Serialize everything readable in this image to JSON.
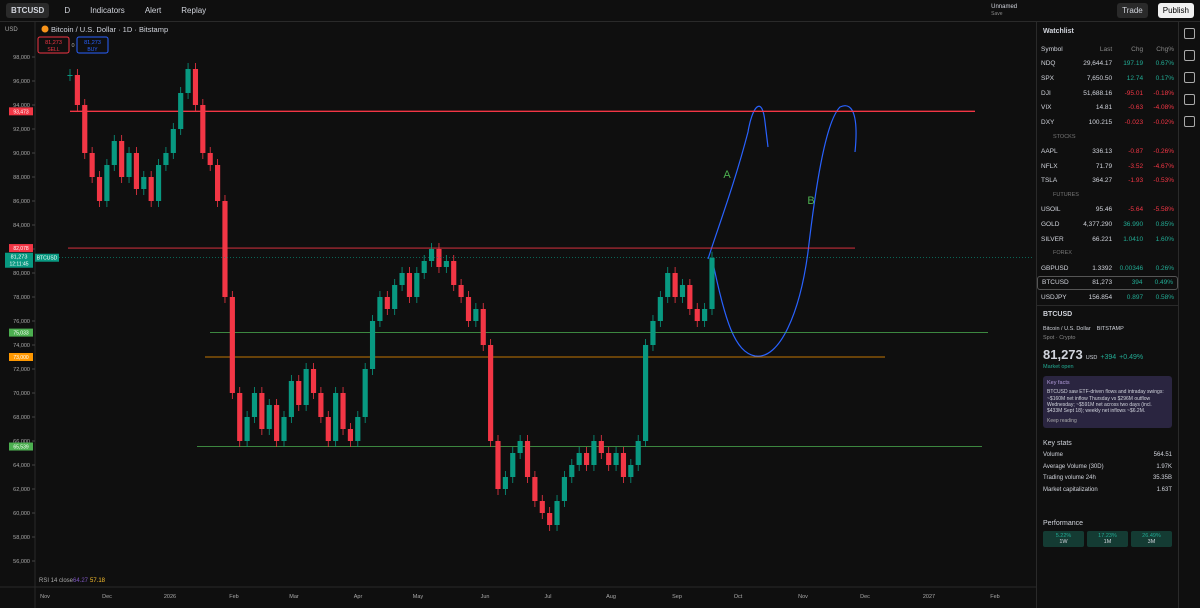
{
  "toolbar": {
    "symbol": "BTCUSD",
    "interval": "D",
    "indicators": "Indicators",
    "alert": "Alert",
    "replay": "Replay",
    "layout_name": "Unnamed",
    "save": "Save",
    "trade": "Trade",
    "publish": "Publish"
  },
  "chart_header": {
    "currency": "USD",
    "title": "Bitcoin / U.S. Dollar · 1D · Bitstamp",
    "sell_price": "81,273",
    "sell": "SELL",
    "spread": "0",
    "buy_price": "81,273",
    "buy": "BUY",
    "last_price": "81,273",
    "countdown": "12:11:45",
    "last_symbol": "BTCUSD",
    "rsi": "RSI 14 close",
    "rsi_value": "64.27",
    "rsi_ma": "57.18",
    "annotation_a": "A",
    "annotation_b": "B"
  },
  "chart_data": {
    "type": "candlestick",
    "values": [
      96500,
      94000,
      90000,
      88000,
      86000,
      89000,
      91000,
      88000,
      90000,
      87000,
      88000,
      86000,
      89000,
      90000,
      92000,
      95000,
      97000,
      94000,
      90000,
      89000,
      86000,
      78000,
      70000,
      66000,
      68000,
      70000,
      67000,
      69000,
      66000,
      68000,
      71000,
      69000,
      72000,
      70000,
      68000,
      66000,
      70000,
      67000,
      66000,
      68000,
      72000,
      76000,
      78000,
      77000,
      79000,
      80000,
      78000,
      80000,
      81000,
      82000,
      80500,
      81000,
      79000,
      78000,
      76000,
      77000,
      74000,
      66000,
      62000,
      63000,
      65000,
      66000,
      63000,
      61000,
      60000,
      59000,
      61000,
      63000,
      64000,
      65000,
      64000,
      66000,
      65000,
      64000,
      65000,
      63000,
      64000,
      66000,
      74000,
      76000,
      78000,
      80000,
      78000,
      79000,
      77000,
      76000,
      77000,
      81273
    ],
    "up_color": "#089981",
    "down_color": "#f23645",
    "ylim": [
      55000,
      99000
    ],
    "yticks": [
      {
        "value": 56000,
        "label": "56,000"
      },
      {
        "value": 58000,
        "label": "58,000"
      },
      {
        "value": 60000,
        "label": "60,000"
      },
      {
        "value": 62000,
        "label": "62,000"
      },
      {
        "value": 64000,
        "label": "64,000"
      },
      {
        "value": 66000,
        "label": "66,000"
      },
      {
        "value": 68000,
        "label": "68,000"
      },
      {
        "value": 70000,
        "label": "70,000"
      },
      {
        "value": 72000,
        "label": "72,000"
      },
      {
        "value": 74000,
        "label": "74,000"
      },
      {
        "value": 76000,
        "label": "76,000"
      },
      {
        "value": 78000,
        "label": "78,000"
      },
      {
        "value": 80000,
        "label": "80,000"
      },
      {
        "value": 82000,
        "label": "82,000"
      },
      {
        "value": 84000,
        "label": "84,000"
      },
      {
        "value": 86000,
        "label": "86,000"
      },
      {
        "value": 88000,
        "label": "88,000"
      },
      {
        "value": 90000,
        "label": "90,000"
      },
      {
        "value": 92000,
        "label": "92,000"
      },
      {
        "value": 94000,
        "label": "94,000"
      },
      {
        "value": 96000,
        "label": "96,000"
      },
      {
        "value": 98000,
        "label": "98,000"
      }
    ],
    "x_labels": [
      "Nov",
      "Dec",
      "2026",
      "Feb",
      "Mar",
      "Apr",
      "May",
      "Jun",
      "Jul",
      "Aug",
      "Sep",
      "Oct",
      "Nov",
      "Dec",
      "2027",
      "Feb"
    ],
    "levels": [
      {
        "value": 93473,
        "label": "93,473",
        "color": "#f23645"
      },
      {
        "value": 82078,
        "label": "82,078",
        "color": "#f23645"
      },
      {
        "value": 75033,
        "label": "75,033",
        "color": "#4caf50"
      },
      {
        "value": 73000,
        "label": "73,000",
        "color": "#ff9800"
      },
      {
        "value": 65539,
        "label": "65,539",
        "color": "#4caf50"
      }
    ]
  },
  "watchlist": {
    "title": "Watchlist",
    "columns": [
      "Symbol",
      "Last",
      "Chg",
      "Chg%"
    ],
    "rows": [
      {
        "symbol": "NDQ",
        "last": "29,644.17",
        "chg": "197.19",
        "chg_pct": "0.67%"
      },
      {
        "symbol": "SPX",
        "last": "7,650.50",
        "chg": "12.74",
        "chg_pct": "0.17%"
      },
      {
        "symbol": "DJI",
        "last": "51,688.16",
        "chg": "-95.01",
        "chg_pct": "-0.18%"
      },
      {
        "symbol": "VIX",
        "last": "14.81",
        "chg": "-0.63",
        "chg_pct": "-4.08%"
      },
      {
        "symbol": "DXY",
        "last": "100.215",
        "chg": "-0.023",
        "chg_pct": "-0.02%"
      },
      {
        "section": "STOCKS"
      },
      {
        "symbol": "AAPL",
        "last": "336.13",
        "chg": "-0.87",
        "chg_pct": "-0.26%"
      },
      {
        "symbol": "NFLX",
        "last": "71.79",
        "chg": "-3.52",
        "chg_pct": "-4.67%"
      },
      {
        "symbol": "TSLA",
        "last": "364.27",
        "chg": "-1.93",
        "chg_pct": "-0.53%"
      },
      {
        "section": "FUTURES"
      },
      {
        "symbol": "USOIL",
        "last": "95.46",
        "chg": "-5.64",
        "chg_pct": "-5.58%"
      },
      {
        "symbol": "GOLD",
        "last": "4,377.290",
        "chg": "36.990",
        "chg_pct": "0.85%"
      },
      {
        "symbol": "SILVER",
        "last": "66.221",
        "chg": "1.0410",
        "chg_pct": "1.60%"
      },
      {
        "section": "FOREX"
      },
      {
        "symbol": "GBPUSD",
        "last": "1.3392",
        "chg": "0.00346",
        "chg_pct": "0.26%"
      },
      {
        "symbol": "BTCUSD",
        "last": "81,273",
        "chg": "394",
        "chg_pct": "0.49%"
      },
      {
        "symbol": "USDJPY",
        "last": "156.854",
        "chg": "0.897",
        "chg_pct": "0.58%"
      }
    ]
  },
  "details": {
    "symbol": "BTCUSD",
    "name": "Bitcoin / U.S. Dollar",
    "exchange": "BITSTAMP",
    "kind": "Spot · Crypto",
    "price": "81,273",
    "currency": "USD",
    "change": "+394",
    "change_pct": "+0.49%",
    "status": "Market open",
    "key_facts_title": "Key facts",
    "key_facts": "BTCUSD saw ETF-driven flows and intraday swings: ~$160M net inflow Thursday vs $296M outflow Wednesday; ~$591M net across two days (incl. $433M Sept 18); weekly net inflows ~$6.2M.",
    "keep_reading": "Keep reading",
    "key_stats_title": "Key stats",
    "key_stats": [
      {
        "label": "Volume",
        "value": "564.51"
      },
      {
        "label": "Average Volume (30D)",
        "value": "1.97K"
      },
      {
        "label": "Trading volume 24h",
        "value": "35.35B"
      },
      {
        "label": "Market capitalization",
        "value": "1.63T"
      }
    ],
    "performance_title": "Performance",
    "performance": [
      {
        "value": "5.22%",
        "period": "1W"
      },
      {
        "value": "17.23%",
        "period": "1M"
      },
      {
        "value": "26.49%",
        "period": "3M"
      }
    ]
  }
}
